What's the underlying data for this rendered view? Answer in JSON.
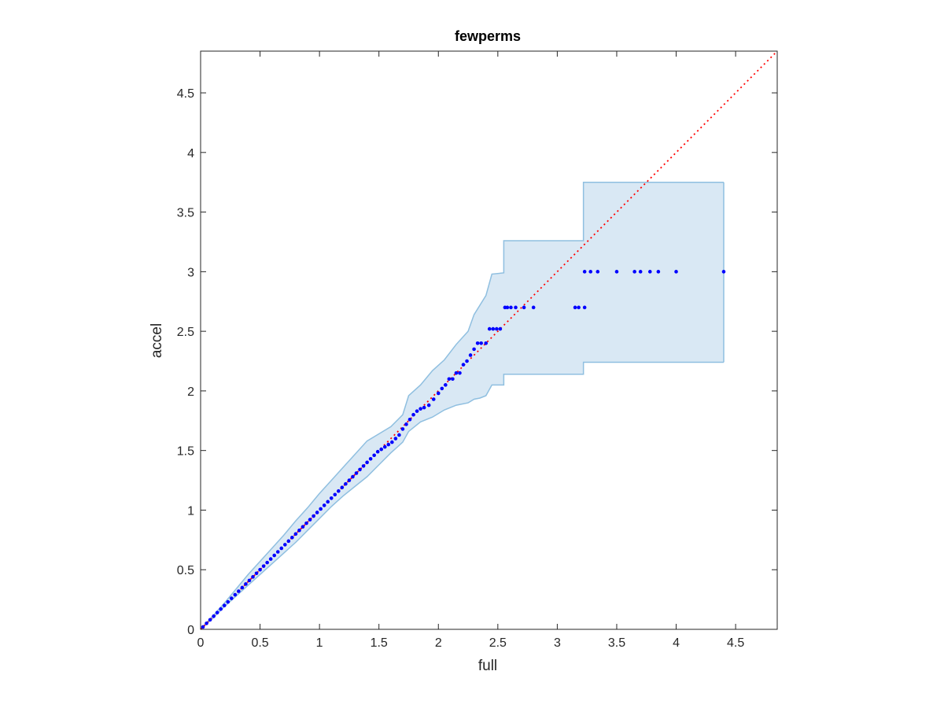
{
  "chart_data": {
    "type": "scatter",
    "title": "fewperms",
    "xlabel": "full",
    "ylabel": "accel",
    "xlim": [
      0,
      4.85
    ],
    "ylim": [
      0,
      4.85
    ],
    "xticks": [
      "0",
      "0.5",
      "1",
      "1.5",
      "2",
      "2.5",
      "3",
      "3.5",
      "4",
      "4.5"
    ],
    "yticks": [
      "0",
      "0.5",
      "1",
      "1.5",
      "2",
      "2.5",
      "3",
      "3.5",
      "4",
      "4.5"
    ],
    "grid": false,
    "colors": {
      "points": "#0000ff",
      "reference_line": "#ff0000",
      "band_fill": "#d9e8f4",
      "band_edge": "#8fbfe0",
      "axes": "#262626"
    },
    "reference_line": {
      "type": "y=x",
      "style": "dotted"
    },
    "band": {
      "upper": [
        [
          0,
          0
        ],
        [
          0.1,
          0.11
        ],
        [
          0.2,
          0.22
        ],
        [
          0.3,
          0.34
        ],
        [
          0.4,
          0.46
        ],
        [
          0.5,
          0.57
        ],
        [
          0.6,
          0.68
        ],
        [
          0.7,
          0.79
        ],
        [
          0.8,
          0.91
        ],
        [
          0.9,
          1.02
        ],
        [
          1.0,
          1.14
        ],
        [
          1.1,
          1.25
        ],
        [
          1.2,
          1.36
        ],
        [
          1.3,
          1.47
        ],
        [
          1.4,
          1.58
        ],
        [
          1.5,
          1.64
        ],
        [
          1.6,
          1.7
        ],
        [
          1.7,
          1.8
        ],
        [
          1.75,
          1.96
        ],
        [
          1.85,
          2.05
        ],
        [
          1.95,
          2.17
        ],
        [
          2.05,
          2.26
        ],
        [
          2.15,
          2.39
        ],
        [
          2.25,
          2.5
        ],
        [
          2.3,
          2.64
        ],
        [
          2.4,
          2.8
        ],
        [
          2.45,
          2.98
        ],
        [
          2.55,
          2.99
        ],
        [
          2.55,
          3.26
        ],
        [
          3.22,
          3.26
        ],
        [
          3.22,
          3.75
        ],
        [
          4.4,
          3.75
        ]
      ],
      "lower": [
        [
          0,
          0
        ],
        [
          0.1,
          0.09
        ],
        [
          0.2,
          0.19
        ],
        [
          0.3,
          0.28
        ],
        [
          0.4,
          0.37
        ],
        [
          0.5,
          0.46
        ],
        [
          0.6,
          0.55
        ],
        [
          0.7,
          0.64
        ],
        [
          0.8,
          0.73
        ],
        [
          0.9,
          0.83
        ],
        [
          1.0,
          0.93
        ],
        [
          1.1,
          1.03
        ],
        [
          1.2,
          1.12
        ],
        [
          1.3,
          1.2
        ],
        [
          1.4,
          1.28
        ],
        [
          1.5,
          1.38
        ],
        [
          1.6,
          1.48
        ],
        [
          1.7,
          1.57
        ],
        [
          1.75,
          1.66
        ],
        [
          1.85,
          1.74
        ],
        [
          1.95,
          1.78
        ],
        [
          2.05,
          1.84
        ],
        [
          2.15,
          1.88
        ],
        [
          2.25,
          1.9
        ],
        [
          2.3,
          1.93
        ],
        [
          2.35,
          1.94
        ],
        [
          2.4,
          1.96
        ],
        [
          2.45,
          2.05
        ],
        [
          2.55,
          2.05
        ],
        [
          2.55,
          2.14
        ],
        [
          3.22,
          2.14
        ],
        [
          3.22,
          2.24
        ],
        [
          4.4,
          2.24
        ]
      ]
    },
    "points": [
      [
        0.02,
        0.02
      ],
      [
        0.05,
        0.05
      ],
      [
        0.08,
        0.08
      ],
      [
        0.11,
        0.11
      ],
      [
        0.14,
        0.14
      ],
      [
        0.17,
        0.17
      ],
      [
        0.2,
        0.2
      ],
      [
        0.23,
        0.23
      ],
      [
        0.26,
        0.26
      ],
      [
        0.29,
        0.29
      ],
      [
        0.32,
        0.32
      ],
      [
        0.35,
        0.35
      ],
      [
        0.38,
        0.38
      ],
      [
        0.41,
        0.41
      ],
      [
        0.44,
        0.44
      ],
      [
        0.47,
        0.47
      ],
      [
        0.5,
        0.5
      ],
      [
        0.53,
        0.53
      ],
      [
        0.56,
        0.56
      ],
      [
        0.59,
        0.59
      ],
      [
        0.62,
        0.62
      ],
      [
        0.65,
        0.65
      ],
      [
        0.68,
        0.68
      ],
      [
        0.71,
        0.71
      ],
      [
        0.74,
        0.74
      ],
      [
        0.77,
        0.77
      ],
      [
        0.8,
        0.8
      ],
      [
        0.83,
        0.83
      ],
      [
        0.86,
        0.86
      ],
      [
        0.89,
        0.89
      ],
      [
        0.92,
        0.92
      ],
      [
        0.95,
        0.95
      ],
      [
        0.98,
        0.98
      ],
      [
        1.01,
        1.01
      ],
      [
        1.04,
        1.04
      ],
      [
        1.07,
        1.07
      ],
      [
        1.1,
        1.1
      ],
      [
        1.13,
        1.13
      ],
      [
        1.16,
        1.16
      ],
      [
        1.19,
        1.19
      ],
      [
        1.22,
        1.22
      ],
      [
        1.25,
        1.25
      ],
      [
        1.28,
        1.28
      ],
      [
        1.31,
        1.31
      ],
      [
        1.34,
        1.34
      ],
      [
        1.37,
        1.37
      ],
      [
        1.4,
        1.4
      ],
      [
        1.43,
        1.43
      ],
      [
        1.46,
        1.46
      ],
      [
        1.49,
        1.49
      ],
      [
        1.52,
        1.51
      ],
      [
        1.55,
        1.53
      ],
      [
        1.58,
        1.55
      ],
      [
        1.61,
        1.57
      ],
      [
        1.64,
        1.6
      ],
      [
        1.67,
        1.63
      ],
      [
        1.7,
        1.68
      ],
      [
        1.73,
        1.72
      ],
      [
        1.76,
        1.76
      ],
      [
        1.79,
        1.8
      ],
      [
        1.82,
        1.83
      ],
      [
        1.85,
        1.85
      ],
      [
        1.88,
        1.86
      ],
      [
        1.92,
        1.88
      ],
      [
        1.96,
        1.93
      ],
      [
        2.0,
        1.98
      ],
      [
        2.03,
        2.02
      ],
      [
        2.06,
        2.05
      ],
      [
        2.09,
        2.1
      ],
      [
        2.12,
        2.1
      ],
      [
        2.15,
        2.15
      ],
      [
        2.18,
        2.15
      ],
      [
        2.21,
        2.22
      ],
      [
        2.24,
        2.25
      ],
      [
        2.27,
        2.3
      ],
      [
        2.3,
        2.35
      ],
      [
        2.33,
        2.4
      ],
      [
        2.36,
        2.4
      ],
      [
        2.4,
        2.4
      ],
      [
        2.43,
        2.52
      ],
      [
        2.46,
        2.52
      ],
      [
        2.49,
        2.52
      ],
      [
        2.52,
        2.52
      ],
      [
        2.56,
        2.7
      ],
      [
        2.58,
        2.7
      ],
      [
        2.61,
        2.7
      ],
      [
        2.65,
        2.7
      ],
      [
        2.72,
        2.7
      ],
      [
        2.8,
        2.7
      ],
      [
        3.15,
        2.7
      ],
      [
        3.18,
        2.7
      ],
      [
        3.23,
        2.7
      ],
      [
        3.23,
        3.0
      ],
      [
        3.28,
        3.0
      ],
      [
        3.34,
        3.0
      ],
      [
        3.5,
        3.0
      ],
      [
        3.65,
        3.0
      ],
      [
        3.7,
        3.0
      ],
      [
        3.78,
        3.0
      ],
      [
        3.85,
        3.0
      ],
      [
        4.0,
        3.0
      ],
      [
        4.4,
        3.0
      ]
    ]
  }
}
